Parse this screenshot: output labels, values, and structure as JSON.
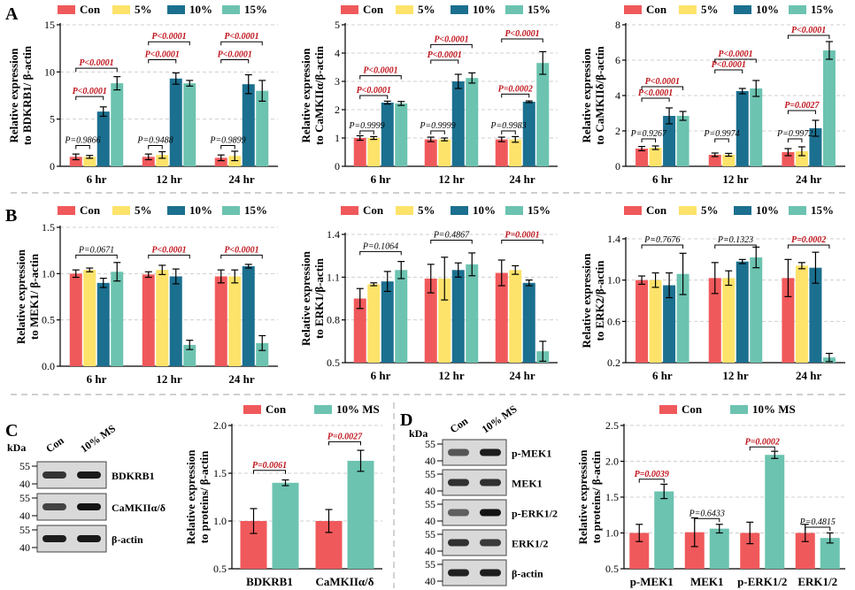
{
  "figure": {
    "panel_letters": [
      "A",
      "B",
      "C",
      "D"
    ],
    "colors": {
      "Con": "#f0595b",
      "5%": "#fde36a",
      "10%": "#1b6f8f",
      "15%": "#6cc3b0",
      "10% MS": "#6cc3b0",
      "sig": "#c0141c",
      "ns": "#000000"
    },
    "legend_groups": [
      "Con",
      "5%",
      "10%",
      "15%"
    ],
    "legend_two": [
      "Con",
      "10% MS"
    ]
  },
  "chart_data": [
    {
      "id": "A1",
      "type": "bar",
      "title": "",
      "ylabel": [
        "Relative expression",
        "to BDKRB1/ β-actin"
      ],
      "categories": [
        "6 hr",
        "12 hr",
        "24 hr"
      ],
      "ylim": [
        0,
        15
      ],
      "yticks": [
        0,
        5,
        10,
        15
      ],
      "tick_labels": [
        "0",
        "5",
        "10",
        "15"
      ],
      "series": [
        {
          "name": "Con",
          "values": [
            1.0,
            1.0,
            0.9
          ],
          "errors": [
            0.3,
            0.3,
            0.3
          ]
        },
        {
          "name": "5%",
          "values": [
            1.0,
            1.2,
            1.1
          ],
          "errors": [
            0.15,
            0.35,
            0.5
          ]
        },
        {
          "name": "10%",
          "values": [
            5.8,
            9.3,
            8.7
          ],
          "errors": [
            0.5,
            0.6,
            1.0
          ]
        },
        {
          "name": "15%",
          "values": [
            8.8,
            8.8,
            8.0
          ],
          "errors": [
            0.7,
            0.3,
            1.1
          ]
        }
      ],
      "annotations": [
        {
          "text": "P=0.9866",
          "cat": 0,
          "from": 0,
          "to": 1,
          "y": 2.2,
          "sig": false
        },
        {
          "text": "P<0.0001",
          "cat": 0,
          "from": 0,
          "to": 2,
          "y": 7.4,
          "sig": true
        },
        {
          "text": "P<0.0001",
          "cat": 0,
          "from": 0,
          "to": 3,
          "y": 10.4,
          "sig": true
        },
        {
          "text": "P=0.9488",
          "cat": 1,
          "from": 0,
          "to": 1,
          "y": 2.2,
          "sig": false
        },
        {
          "text": "P<0.0001",
          "cat": 1,
          "from": 0,
          "to": 2,
          "y": 11.3,
          "sig": true
        },
        {
          "text": "P<0.0001",
          "cat": 1,
          "from": 0,
          "to": 3,
          "y": 13.2,
          "sig": true
        },
        {
          "text": "P=0.9899",
          "cat": 2,
          "from": 0,
          "to": 1,
          "y": 2.2,
          "sig": false
        },
        {
          "text": "P<0.0001",
          "cat": 2,
          "from": 0,
          "to": 2,
          "y": 11.3,
          "sig": true
        },
        {
          "text": "P<0.0001",
          "cat": 2,
          "from": 0,
          "to": 3,
          "y": 13.2,
          "sig": true
        }
      ]
    },
    {
      "id": "A2",
      "type": "bar",
      "title": "",
      "ylabel": [
        "Relative expression",
        "to CaMKIIα/β-actin"
      ],
      "categories": [
        "6 hr",
        "12 hr",
        "24 hr"
      ],
      "ylim": [
        0,
        5
      ],
      "yticks": [
        0,
        1,
        2,
        3,
        4,
        5
      ],
      "tick_labels": [
        "0",
        "1",
        "2",
        "3",
        "4",
        "5"
      ],
      "series": [
        {
          "name": "Con",
          "values": [
            1.0,
            0.95,
            0.95
          ],
          "errors": [
            0.08,
            0.08,
            0.08
          ]
        },
        {
          "name": "5%",
          "values": [
            1.0,
            0.95,
            0.95
          ],
          "errors": [
            0.05,
            0.05,
            0.1
          ]
        },
        {
          "name": "10%",
          "values": [
            2.25,
            3.0,
            2.28
          ],
          "errors": [
            0.05,
            0.25,
            0.03
          ]
        },
        {
          "name": "15%",
          "values": [
            2.22,
            3.12,
            3.65
          ],
          "errors": [
            0.07,
            0.18,
            0.4
          ]
        }
      ],
      "annotations": [
        {
          "text": "P=0.9999",
          "cat": 0,
          "from": 0,
          "to": 1,
          "y": 1.25,
          "sig": false
        },
        {
          "text": "P<0.0001",
          "cat": 0,
          "from": 0,
          "to": 2,
          "y": 2.5,
          "sig": true
        },
        {
          "text": "P<0.0001",
          "cat": 0,
          "from": 0,
          "to": 3,
          "y": 3.2,
          "sig": true
        },
        {
          "text": "P=0.9999",
          "cat": 1,
          "from": 0,
          "to": 1,
          "y": 1.25,
          "sig": false
        },
        {
          "text": "P<0.0001",
          "cat": 1,
          "from": 0,
          "to": 2,
          "y": 3.75,
          "sig": true
        },
        {
          "text": "P<0.0001",
          "cat": 1,
          "from": 0,
          "to": 3,
          "y": 4.3,
          "sig": true
        },
        {
          "text": "P=0.9983",
          "cat": 2,
          "from": 0,
          "to": 1,
          "y": 1.25,
          "sig": false
        },
        {
          "text": "P=0.0002",
          "cat": 2,
          "from": 0,
          "to": 2,
          "y": 2.55,
          "sig": true
        },
        {
          "text": "P<0.0001",
          "cat": 2,
          "from": 0,
          "to": 3,
          "y": 4.5,
          "sig": true
        }
      ]
    },
    {
      "id": "A3",
      "type": "bar",
      "title": "",
      "ylabel": [
        "Relative expression",
        "to CaMKIIδ/β-actin"
      ],
      "categories": [
        "6 hr",
        "12 hr",
        "24 hr"
      ],
      "ylim": [
        0,
        8
      ],
      "yticks": [
        0,
        2,
        4,
        6,
        8
      ],
      "tick_labels": [
        "0",
        "2",
        "4",
        "6",
        "8"
      ],
      "series": [
        {
          "name": "Con",
          "values": [
            1.0,
            0.65,
            0.8
          ],
          "errors": [
            0.12,
            0.1,
            0.2
          ]
        },
        {
          "name": "5%",
          "values": [
            1.05,
            0.65,
            0.85
          ],
          "errors": [
            0.1,
            0.08,
            0.25
          ]
        },
        {
          "name": "10%",
          "values": [
            2.85,
            4.25,
            2.15
          ],
          "errors": [
            0.45,
            0.15,
            0.45
          ]
        },
        {
          "name": "15%",
          "values": [
            2.85,
            4.4,
            6.55
          ],
          "errors": [
            0.25,
            0.45,
            0.5
          ]
        }
      ],
      "annotations": [
        {
          "text": "P=0.9267",
          "cat": 0,
          "from": 0,
          "to": 1,
          "y": 1.55,
          "sig": false
        },
        {
          "text": "P<0.0001",
          "cat": 0,
          "from": 0,
          "to": 2,
          "y": 3.85,
          "sig": true
        },
        {
          "text": "P<0.0001",
          "cat": 0,
          "from": 0,
          "to": 3,
          "y": 4.5,
          "sig": true
        },
        {
          "text": "P=0.9974",
          "cat": 1,
          "from": 0,
          "to": 1,
          "y": 1.55,
          "sig": false
        },
        {
          "text": "P<0.0001",
          "cat": 1,
          "from": 0,
          "to": 2,
          "y": 5.45,
          "sig": true
        },
        {
          "text": "P<0.0001",
          "cat": 1,
          "from": 0,
          "to": 3,
          "y": 6.05,
          "sig": true
        },
        {
          "text": "P=0.9972",
          "cat": 2,
          "from": 0,
          "to": 1,
          "y": 1.55,
          "sig": false
        },
        {
          "text": "P=0.0027",
          "cat": 2,
          "from": 0,
          "to": 2,
          "y": 3.15,
          "sig": true
        },
        {
          "text": "P<0.0001",
          "cat": 2,
          "from": 0,
          "to": 3,
          "y": 7.4,
          "sig": true
        }
      ]
    },
    {
      "id": "B1",
      "type": "bar",
      "title": "",
      "ylabel": [
        "Relative expression",
        "to MEK1/ β-actin"
      ],
      "categories": [
        "6 hr",
        "12 hr",
        "24 hr"
      ],
      "ylim": [
        0,
        1.5
      ],
      "yticks": [
        0,
        0.5,
        1.0,
        1.5
      ],
      "tick_labels": [
        "0.0",
        "0.5",
        "1.0",
        "1.5"
      ],
      "series": [
        {
          "name": "Con",
          "values": [
            1.0,
            0.99,
            0.97
          ],
          "errors": [
            0.04,
            0.03,
            0.07
          ]
        },
        {
          "name": "5%",
          "values": [
            1.04,
            1.04,
            0.97
          ],
          "errors": [
            0.02,
            0.05,
            0.07
          ]
        },
        {
          "name": "10%",
          "values": [
            0.9,
            0.97,
            1.08
          ],
          "errors": [
            0.05,
            0.08,
            0.02
          ]
        },
        {
          "name": "15%",
          "values": [
            1.02,
            0.23,
            0.25
          ],
          "errors": [
            0.1,
            0.05,
            0.08
          ]
        }
      ],
      "annotations": [
        {
          "text": "P=0.0671",
          "cat": 0,
          "from": 0,
          "to": 3,
          "y": 1.2,
          "sig": false
        },
        {
          "text": "P<0.0001",
          "cat": 1,
          "from": 0,
          "to": 3,
          "y": 1.2,
          "sig": true
        },
        {
          "text": "P<0.0001",
          "cat": 2,
          "from": 0,
          "to": 3,
          "y": 1.2,
          "sig": true
        }
      ]
    },
    {
      "id": "B2",
      "type": "bar",
      "title": "",
      "ylabel": [
        "Relative expression",
        "to ERK1/β-actin"
      ],
      "categories": [
        "6 hr",
        "12 hr",
        "24 hr"
      ],
      "ylim": [
        0.5,
        1.4
      ],
      "yticks": [
        0.5,
        0.8,
        1.1,
        1.4
      ],
      "tick_labels": [
        "0.5",
        "0.8",
        "1.1",
        "1.4"
      ],
      "series": [
        {
          "name": "Con",
          "values": [
            0.95,
            1.09,
            1.13
          ],
          "errors": [
            0.07,
            0.1,
            0.09
          ]
        },
        {
          "name": "5%",
          "values": [
            1.05,
            1.09,
            1.15
          ],
          "errors": [
            0.01,
            0.15,
            0.03
          ]
        },
        {
          "name": "10%",
          "values": [
            1.07,
            1.15,
            1.06
          ],
          "errors": [
            0.07,
            0.05,
            0.02
          ]
        },
        {
          "name": "15%",
          "values": [
            1.15,
            1.19,
            0.58
          ],
          "errors": [
            0.06,
            0.08,
            0.07
          ]
        }
      ],
      "annotations": [
        {
          "text": "P=0.1064",
          "cat": 0,
          "from": 0,
          "to": 3,
          "y": 1.28,
          "sig": false
        },
        {
          "text": "P=0.4867",
          "cat": 1,
          "from": 0,
          "to": 3,
          "y": 1.36,
          "sig": false
        },
        {
          "text": "P=0.0001",
          "cat": 2,
          "from": 0,
          "to": 3,
          "y": 1.36,
          "sig": true
        }
      ]
    },
    {
      "id": "B3",
      "type": "bar",
      "title": "",
      "ylabel": [
        "Relative expression",
        "to ERK2/β-actin"
      ],
      "categories": [
        "6 hr",
        "12 hr",
        "24 hr"
      ],
      "ylim": [
        0.2,
        1.4
      ],
      "yticks": [
        0.2,
        0.6,
        1.0,
        1.4
      ],
      "tick_labels": [
        "0.2",
        "0.6",
        "1.0",
        "1.4"
      ],
      "series": [
        {
          "name": "Con",
          "values": [
            1.0,
            1.02,
            1.02
          ],
          "errors": [
            0.04,
            0.15,
            0.18
          ]
        },
        {
          "name": "5%",
          "values": [
            1.0,
            1.02,
            1.14
          ],
          "errors": [
            0.07,
            0.07,
            0.03
          ]
        },
        {
          "name": "10%",
          "values": [
            0.95,
            1.18,
            1.12
          ],
          "errors": [
            0.12,
            0.02,
            0.15
          ]
        },
        {
          "name": "15%",
          "values": [
            1.06,
            1.22,
            0.25
          ],
          "errors": [
            0.2,
            0.1,
            0.04
          ]
        }
      ],
      "annotations": [
        {
          "text": "P=0.7676",
          "cat": 0,
          "from": 0,
          "to": 3,
          "y": 1.34,
          "sig": false
        },
        {
          "text": "P=0.1323",
          "cat": 1,
          "from": 0,
          "to": 3,
          "y": 1.34,
          "sig": false
        },
        {
          "text": "P=0.0002",
          "cat": 2,
          "from": 0,
          "to": 3,
          "y": 1.34,
          "sig": true
        }
      ]
    },
    {
      "id": "C",
      "type": "bar",
      "title": "",
      "ylabel": [
        "Relative expression",
        "to proteins/ β-actin"
      ],
      "categories": [
        "BDKRB1",
        "CaMKIIα/δ"
      ],
      "ylim": [
        0.5,
        2.0
      ],
      "yticks": [
        0.5,
        1.0,
        1.5,
        2.0
      ],
      "tick_labels": [
        "0.5",
        "1.0",
        "1.5",
        "2.0"
      ],
      "series": [
        {
          "name": "Con",
          "values": [
            1.0,
            1.0
          ],
          "errors": [
            0.13,
            0.12
          ]
        },
        {
          "name": "10% MS",
          "values": [
            1.4,
            1.63
          ],
          "errors": [
            0.03,
            0.11
          ]
        }
      ],
      "annotations": [
        {
          "text": "P=0.0061",
          "cat": 0,
          "from": 0,
          "to": 1,
          "y": 1.53,
          "sig": true
        },
        {
          "text": "P=0.0027",
          "cat": 1,
          "from": 0,
          "to": 1,
          "y": 1.83,
          "sig": true
        }
      ]
    },
    {
      "id": "D",
      "type": "bar",
      "title": "",
      "ylabel": [
        "Relative expression",
        "to proteins/ β-actin"
      ],
      "categories": [
        "p-MEK1",
        "MEK1",
        "p-ERK1/2",
        "ERK1/2"
      ],
      "ylim": [
        0.5,
        2.5
      ],
      "yticks": [
        0.5,
        1.0,
        1.5,
        2.0,
        2.5
      ],
      "tick_labels": [
        "0.5",
        "1.0",
        "1.5",
        "2.0",
        "2.5"
      ],
      "series": [
        {
          "name": "Con",
          "values": [
            1.0,
            1.01,
            1.0,
            1.0
          ],
          "errors": [
            0.12,
            0.2,
            0.15,
            0.12
          ]
        },
        {
          "name": "10% MS",
          "values": [
            1.58,
            1.06,
            2.09,
            0.93
          ],
          "errors": [
            0.1,
            0.06,
            0.05,
            0.07
          ]
        }
      ],
      "annotations": [
        {
          "text": "P=0.0039",
          "cat": 0,
          "from": 0,
          "to": 1,
          "y": 1.75,
          "sig": true
        },
        {
          "text": "P=0.6433",
          "cat": 1,
          "from": 0,
          "to": 1,
          "y": 1.2,
          "sig": false
        },
        {
          "text": "P=0.0002",
          "cat": 2,
          "from": 0,
          "to": 1,
          "y": 2.2,
          "sig": true
        },
        {
          "text": "P=0.4815",
          "cat": 3,
          "from": 0,
          "to": 1,
          "y": 1.08,
          "sig": false
        }
      ]
    }
  ],
  "blots": {
    "C": {
      "kda_label": "kDa",
      "lanes": [
        "Con",
        "10% MS"
      ],
      "bands": [
        {
          "name": "BDKRB1",
          "markers": [
            "55",
            "40"
          ],
          "intensity": [
            0.78,
            0.92
          ]
        },
        {
          "name": "CaMKIIα/δ",
          "markers": [
            "55",
            "40"
          ],
          "intensity": [
            0.7,
            0.95
          ]
        },
        {
          "name": "β-actin",
          "markers": [
            "55",
            "40"
          ],
          "intensity": [
            0.9,
            0.92
          ]
        }
      ]
    },
    "D": {
      "kda_label": "kDa",
      "lanes": [
        "Con",
        "10% MS"
      ],
      "bands": [
        {
          "name": "p-MEK1",
          "markers": [
            "55",
            "40"
          ],
          "intensity": [
            0.6,
            0.9
          ]
        },
        {
          "name": "MEK1",
          "markers": [
            "55",
            "40"
          ],
          "intensity": [
            0.8,
            0.8
          ]
        },
        {
          "name": "p-ERK1/2",
          "markers": [
            "55",
            "40"
          ],
          "intensity": [
            0.55,
            0.95
          ]
        },
        {
          "name": "ERK1/2",
          "markers": [
            "55",
            "40"
          ],
          "intensity": [
            0.8,
            0.75
          ]
        },
        {
          "name": "β-actin",
          "markers": [
            "55",
            "40"
          ],
          "intensity": [
            0.88,
            0.9
          ]
        }
      ]
    }
  }
}
